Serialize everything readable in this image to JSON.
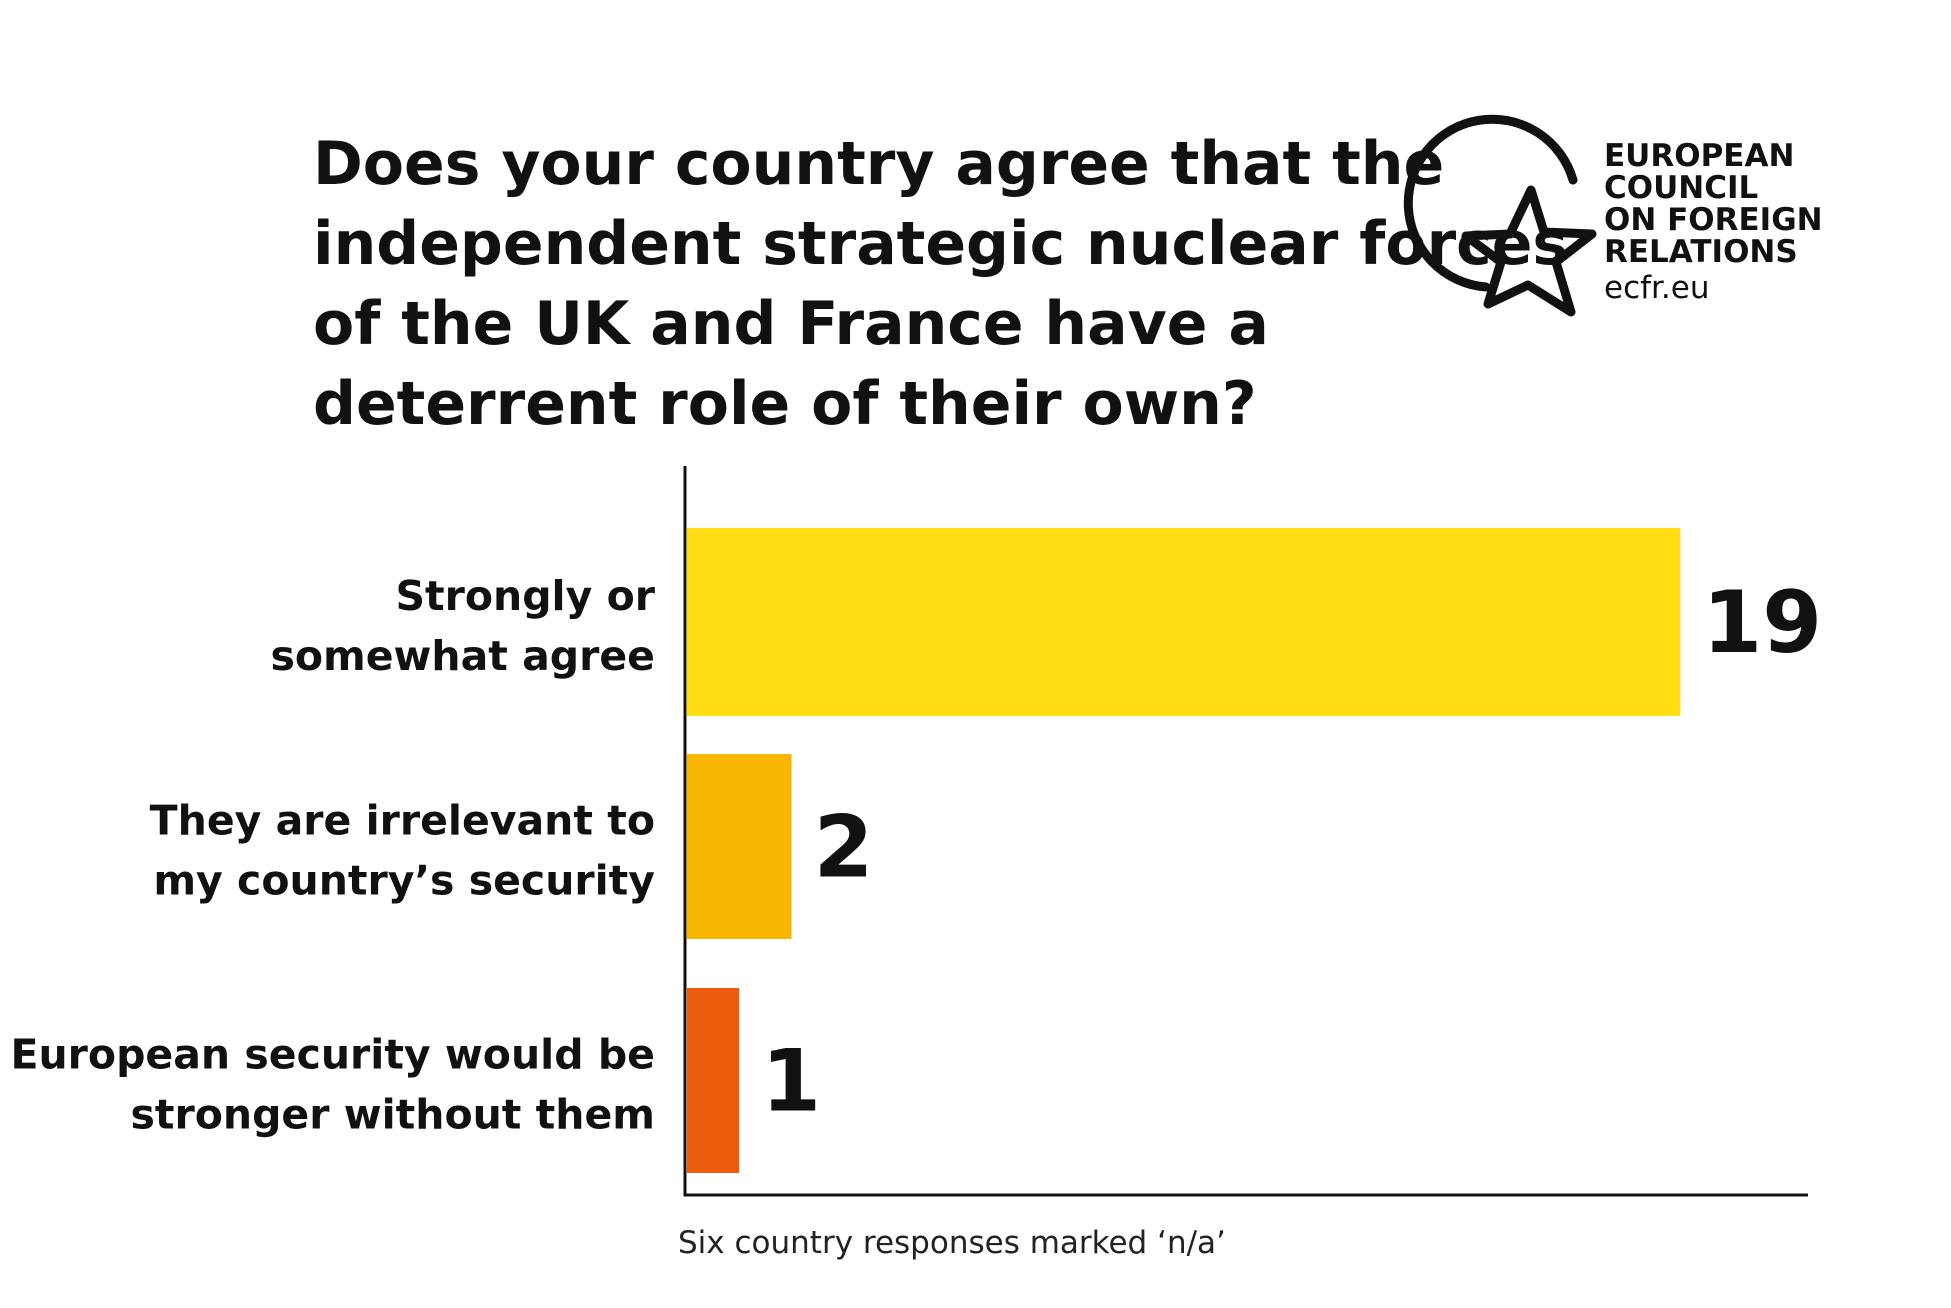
{
  "chart_data": {
    "type": "bar",
    "orientation": "horizontal",
    "title_lines": [
      "Does your country agree that the",
      "independent strategic nuclear forces",
      "of the UK and France have a",
      "deterrent role of their own?"
    ],
    "categories": [
      {
        "lines": [
          "Strongly or",
          "somewhat agree"
        ]
      },
      {
        "lines": [
          "They are irrelevant to",
          "my country’s security"
        ]
      },
      {
        "lines": [
          "European security would be",
          "stronger without them"
        ]
      }
    ],
    "values": [
      19,
      2,
      1
    ],
    "value_labels": [
      "19",
      "2",
      "1"
    ],
    "colors": [
      "#FFDC14",
      "#F9B600",
      "#EA5B0C"
    ],
    "xlim": [
      0,
      21
    ],
    "grid": false,
    "legend": "none",
    "note": "Six country responses marked ‘n/a’"
  },
  "logo": {
    "lines": [
      "EUROPEAN",
      "COUNCIL",
      "ON FOREIGN",
      "RELATIONS"
    ],
    "url": "ecfr.eu",
    "icon": "star-in-circle-icon"
  }
}
